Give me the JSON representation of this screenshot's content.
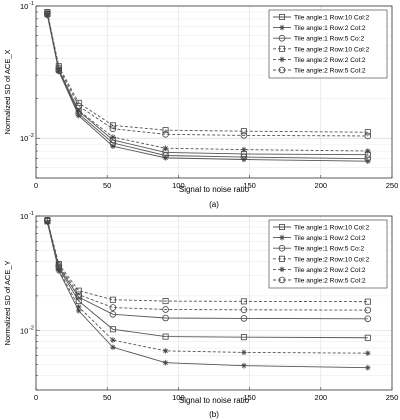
{
  "chart_data": [
    {
      "type": "line",
      "panel_caption": "(a)",
      "title": "",
      "xlabel": "Signal to noise ratio",
      "ylabel": "Normalized SD of ACE_X",
      "xlim": [
        0,
        250
      ],
      "ylim": [
        0.005,
        0.1
      ],
      "yscale": "log",
      "grid": true,
      "legend_position": "top-right",
      "x_ticks": [
        "0",
        "50",
        "100",
        "150",
        "200",
        "250"
      ],
      "y_ticks": [
        {
          "value": 0.1,
          "base": "10",
          "exp": "-1"
        },
        {
          "value": 0.01,
          "base": "10",
          "exp": "-2"
        }
      ],
      "x": [
        8,
        16,
        30,
        54,
        91,
        146,
        233
      ],
      "series": [
        {
          "name": "Tile angle:1 Row:10 Col:2",
          "marker": "square",
          "dash": "solid",
          "values": [
            0.087,
            0.033,
            0.016,
            0.0097,
            0.0078,
            0.0076,
            0.0075
          ]
        },
        {
          "name": "Tile angle:1 Row:2 Col:2",
          "marker": "star",
          "dash": "solid",
          "values": [
            0.085,
            0.032,
            0.0148,
            0.0087,
            0.0071,
            0.0069,
            0.0067
          ]
        },
        {
          "name": "Tile angle:1 Row:5 Co:2",
          "marker": "circle",
          "dash": "solid",
          "values": [
            0.086,
            0.0325,
            0.0153,
            0.0092,
            0.0074,
            0.0072,
            0.007
          ]
        },
        {
          "name": "Tile angle:2 Row:10 Col:2",
          "marker": "square",
          "dash": "dashed",
          "values": [
            0.09,
            0.035,
            0.0185,
            0.0125,
            0.0115,
            0.0113,
            0.0111
          ]
        },
        {
          "name": "Tile angle:2 Row:2 Col:2",
          "marker": "star",
          "dash": "dashed",
          "values": [
            0.088,
            0.033,
            0.0162,
            0.0102,
            0.0084,
            0.0082,
            0.008
          ]
        },
        {
          "name": "Tile angle:2 Row:5 Col:2",
          "marker": "circle",
          "dash": "dashed",
          "values": [
            0.089,
            0.034,
            0.0175,
            0.0118,
            0.0107,
            0.0105,
            0.0104
          ]
        }
      ]
    },
    {
      "type": "line",
      "panel_caption": "(b)",
      "title": "",
      "xlabel": "Signal to noise ratio",
      "ylabel": "Normalized SD of ACE_Y",
      "xlim": [
        0,
        250
      ],
      "ylim": [
        0.003,
        0.1
      ],
      "yscale": "log",
      "grid": true,
      "legend_position": "top-right",
      "x_ticks": [
        "0",
        "50",
        "100",
        "150",
        "200",
        "250"
      ],
      "y_ticks": [
        {
          "value": 0.1,
          "base": "10",
          "exp": "-1"
        },
        {
          "value": 0.01,
          "base": "10",
          "exp": "-2"
        }
      ],
      "x": [
        8,
        16,
        30,
        54,
        91,
        146,
        233
      ],
      "series": [
        {
          "name": "Tile angle:1 Row:10 Col:2",
          "marker": "square",
          "dash": "solid",
          "values": [
            0.09,
            0.035,
            0.018,
            0.0102,
            0.0088,
            0.0087,
            0.0086
          ]
        },
        {
          "name": "Tile angle:1 Row:2 Col:2",
          "marker": "star",
          "dash": "solid",
          "values": [
            0.088,
            0.033,
            0.0148,
            0.0071,
            0.0052,
            0.0049,
            0.0047
          ]
        },
        {
          "name": "Tile angle:1 Row:5 Co:2",
          "marker": "circle",
          "dash": "solid",
          "values": [
            0.091,
            0.036,
            0.0195,
            0.0138,
            0.0128,
            0.0127,
            0.0126
          ]
        },
        {
          "name": "Tile angle:2 Row:10 Col:2",
          "marker": "square",
          "dash": "dashed",
          "values": [
            0.092,
            0.038,
            0.0222,
            0.0185,
            0.018,
            0.0179,
            0.0178
          ]
        },
        {
          "name": "Tile angle:2 Row:2 Col:2",
          "marker": "star",
          "dash": "dashed",
          "values": [
            0.089,
            0.034,
            0.016,
            0.0082,
            0.0066,
            0.0064,
            0.0063
          ]
        },
        {
          "name": "Tile angle:2 Row:5 Col:2",
          "marker": "circle",
          "dash": "dashed",
          "values": [
            0.092,
            0.037,
            0.0205,
            0.0158,
            0.0152,
            0.0151,
            0.015
          ]
        }
      ]
    }
  ]
}
